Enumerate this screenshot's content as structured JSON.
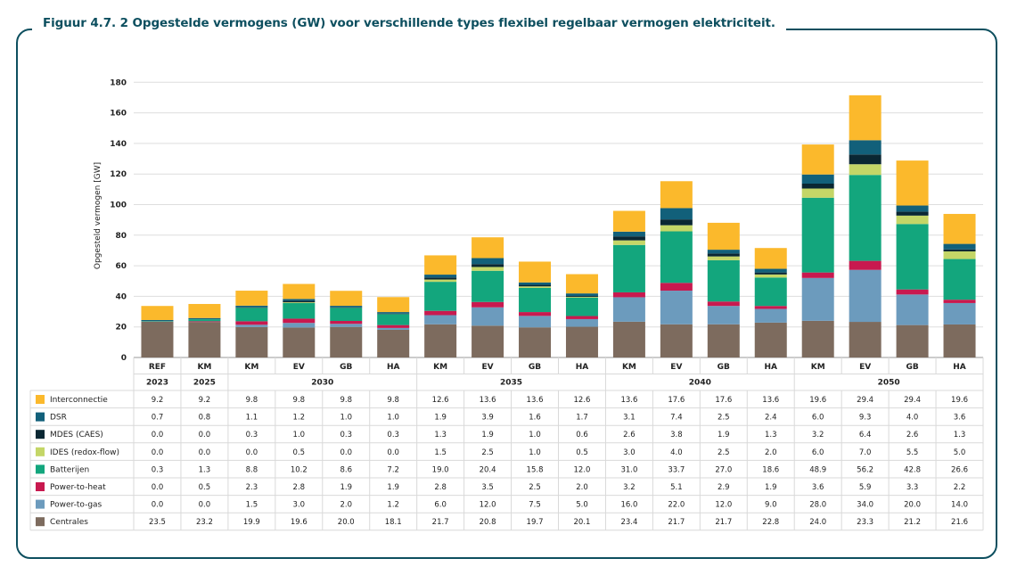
{
  "title": "Figuur 4.7. 2 Opgestelde vermogens (GW) voor verschillende types flexibel regelbaar vermogen elektriciteit.",
  "chart_data": {
    "type": "bar",
    "stacked": true,
    "ylabel": "Opgesteld vermogen [GW]",
    "ylim": [
      0,
      180
    ],
    "yticks": [
      0,
      20,
      40,
      60,
      80,
      100,
      120,
      140,
      160,
      180
    ],
    "grid": true,
    "categories": [
      "REF",
      "KM",
      "KM",
      "EV",
      "GB",
      "HA",
      "KM",
      "EV",
      "GB",
      "HA",
      "KM",
      "EV",
      "GB",
      "HA",
      "KM",
      "EV",
      "GB",
      "HA"
    ],
    "year_groups": [
      {
        "label": "2023",
        "span": 1
      },
      {
        "label": "2025",
        "span": 1
      },
      {
        "label": "2030",
        "span": 4
      },
      {
        "label": "2035",
        "span": 4
      },
      {
        "label": "2040",
        "span": 4
      },
      {
        "label": "2050",
        "span": 4
      }
    ],
    "series": [
      {
        "name": "Interconnectie",
        "color": "#fbb92c",
        "values": [
          "9.2",
          "9.2",
          "9.8",
          "9.8",
          "9.8",
          "9.8",
          "12.6",
          "13.6",
          "13.6",
          "12.6",
          "13.6",
          "17.6",
          "17.6",
          "13.6",
          "19.6",
          "29.4",
          "29.4",
          "19.6"
        ]
      },
      {
        "name": "DSR",
        "color": "#12607a",
        "values": [
          "0.7",
          "0.8",
          "1.1",
          "1.2",
          "1.0",
          "1.0",
          "1.9",
          "3.9",
          "1.6",
          "1.7",
          "3.1",
          "7.4",
          "2.5",
          "2.4",
          "6.0",
          "9.3",
          "4.0",
          "3.6"
        ]
      },
      {
        "name": "MDES (CAES)",
        "color": "#0a2733",
        "values": [
          "0.0",
          "0.0",
          "0.3",
          "1.0",
          "0.3",
          "0.3",
          "1.3",
          "1.9",
          "1.0",
          "0.6",
          "2.6",
          "3.8",
          "1.9",
          "1.3",
          "3.2",
          "6.4",
          "2.6",
          "1.3"
        ]
      },
      {
        "name": "IDES (redox-flow)",
        "color": "#c4d667",
        "values": [
          "0.0",
          "0.0",
          "0.0",
          "0.5",
          "0.0",
          "0.0",
          "1.5",
          "2.5",
          "1.0",
          "0.5",
          "3.0",
          "4.0",
          "2.5",
          "2.0",
          "6.0",
          "7.0",
          "5.5",
          "5.0"
        ]
      },
      {
        "name": "Batterijen",
        "color": "#13a67d",
        "values": [
          "0.3",
          "1.3",
          "8.8",
          "10.2",
          "8.6",
          "7.2",
          "19.0",
          "20.4",
          "15.8",
          "12.0",
          "31.0",
          "33.7",
          "27.0",
          "18.6",
          "48.9",
          "56.2",
          "42.8",
          "26.6"
        ]
      },
      {
        "name": "Power-to-heat",
        "color": "#c8194f",
        "values": [
          "0.0",
          "0.5",
          "2.3",
          "2.8",
          "1.9",
          "1.9",
          "2.8",
          "3.5",
          "2.5",
          "2.0",
          "3.2",
          "5.1",
          "2.9",
          "1.9",
          "3.6",
          "5.9",
          "3.3",
          "2.2"
        ]
      },
      {
        "name": "Power-to-gas",
        "color": "#6c9bbd",
        "values": [
          "0.0",
          "0.0",
          "1.5",
          "3.0",
          "2.0",
          "1.2",
          "6.0",
          "12.0",
          "7.5",
          "5.0",
          "16.0",
          "22.0",
          "12.0",
          "9.0",
          "28.0",
          "34.0",
          "20.0",
          "14.0"
        ]
      },
      {
        "name": "Centrales",
        "color": "#7d6b5e",
        "values": [
          "23.5",
          "23.2",
          "19.9",
          "19.6",
          "20.0",
          "18.1",
          "21.7",
          "20.8",
          "19.7",
          "20.1",
          "23.4",
          "21.7",
          "21.7",
          "22.8",
          "24.0",
          "23.3",
          "21.2",
          "21.6"
        ]
      }
    ]
  }
}
